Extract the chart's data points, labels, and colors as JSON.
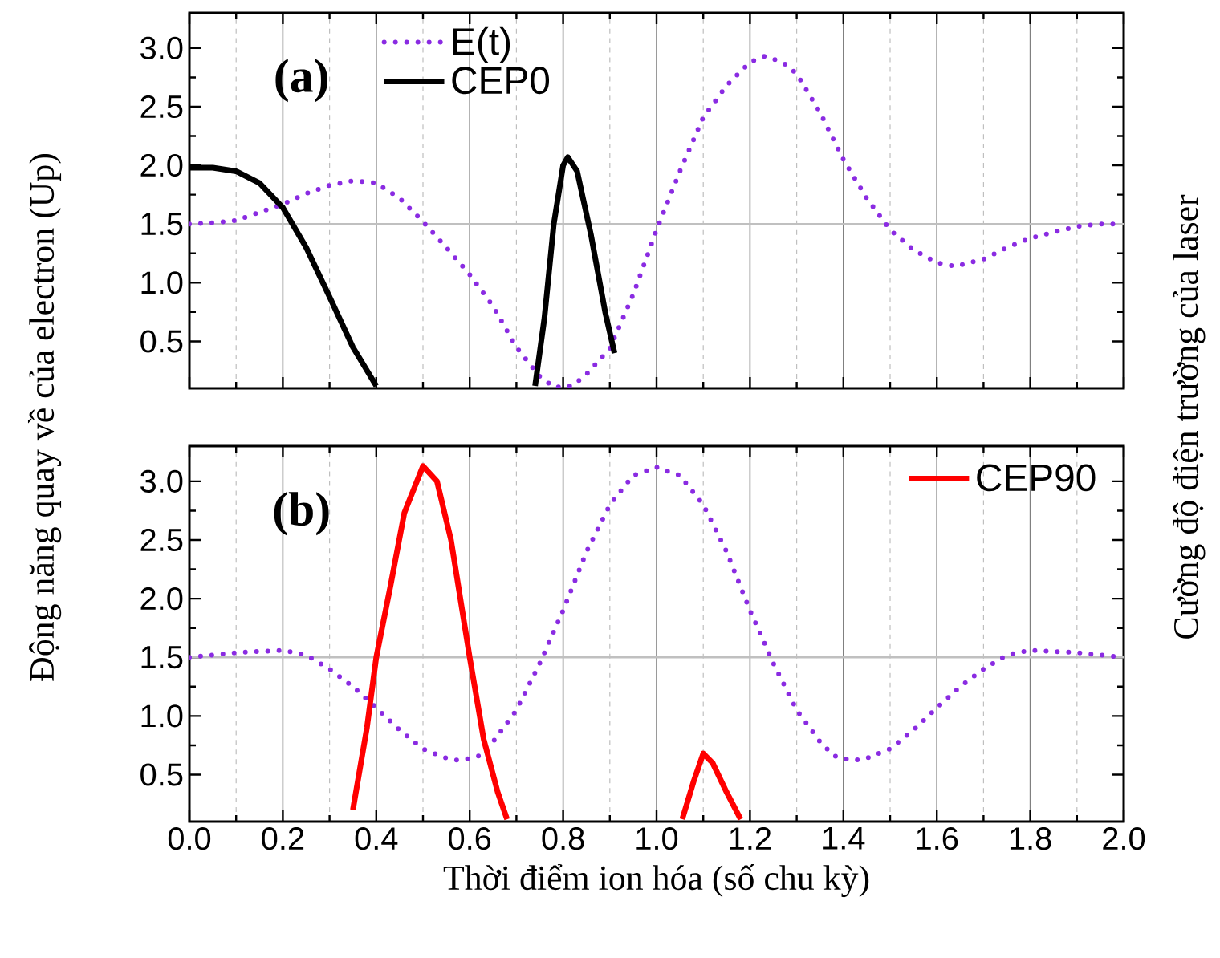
{
  "chart_data": [
    {
      "type": "line",
      "xlim": [
        0,
        2
      ],
      "ylim": [
        0.1,
        3.3
      ],
      "xticks": [
        {
          "value": 0,
          "label": null
        },
        {
          "value": 0.2,
          "label": null
        },
        {
          "value": 0.4,
          "label": null
        },
        {
          "value": 0.6,
          "label": null
        },
        {
          "value": 0.8,
          "label": null
        },
        {
          "value": 1,
          "label": null
        },
        {
          "value": 1.2,
          "label": null
        },
        {
          "value": 1.4,
          "label": null
        },
        {
          "value": 1.6,
          "label": null
        },
        {
          "value": 1.8,
          "label": null
        },
        {
          "value": 2,
          "label": null
        }
      ],
      "yticks": [
        0.5,
        {
          "value": 1,
          "label": "1.0"
        },
        1.5,
        {
          "value": 2,
          "label": "2.0"
        },
        2.5,
        {
          "value": 3,
          "label": "3.0"
        }
      ],
      "tick_labels": "y",
      "grid": "x",
      "legend": "top left",
      "ylabel": "Động năng quay về của electron (Up)",
      "y2label": "Cường độ điện trường của laser",
      "annotations": [
        "(a)"
      ],
      "ref_lines": [
        {
          "axis": "y",
          "value": 1.5,
          "color": "#c0c0c0"
        }
      ],
      "series": [
        {
          "name": "E(t)",
          "color": "#8a2be2",
          "line_style": "dotted",
          "x": [
            0,
            0.05,
            0.1,
            0.15,
            0.2,
            0.25,
            0.3,
            0.35,
            0.4,
            0.45,
            0.5,
            0.55,
            0.6,
            0.65,
            0.7,
            0.75,
            0.78,
            0.82,
            0.85,
            0.9,
            0.95,
            1.0,
            1.05,
            1.1,
            1.15,
            1.2,
            1.23,
            1.27,
            1.3,
            1.35,
            1.4,
            1.45,
            1.5,
            1.55,
            1.6,
            1.64,
            1.7,
            1.75,
            1.8,
            1.85,
            1.9,
            1.95,
            2.0
          ],
          "values": [
            1.5,
            1.51,
            1.53,
            1.6,
            1.67,
            1.76,
            1.83,
            1.87,
            1.85,
            1.72,
            1.52,
            1.3,
            1.07,
            0.8,
            0.45,
            0.2,
            0.11,
            0.12,
            0.22,
            0.44,
            0.9,
            1.45,
            1.95,
            2.41,
            2.68,
            2.88,
            2.93,
            2.88,
            2.78,
            2.45,
            2.05,
            1.72,
            1.45,
            1.28,
            1.17,
            1.14,
            1.2,
            1.3,
            1.38,
            1.43,
            1.48,
            1.5,
            1.5
          ]
        },
        {
          "name": "CEP0",
          "color": "#000000",
          "line_style": "solid",
          "x": [
            0,
            0.05,
            0.1,
            0.15,
            0.2,
            0.25,
            0.3,
            0.35,
            0.4
          ],
          "values": [
            1.98,
            1.98,
            1.95,
            1.85,
            1.64,
            1.3,
            0.88,
            0.45,
            0.12
          ]
        },
        {
          "color": "#000000",
          "line_style": "solid",
          "x": [
            0.74,
            0.76,
            0.78,
            0.8,
            0.81,
            0.83,
            0.86,
            0.89,
            0.91
          ],
          "values": [
            0.12,
            0.7,
            1.5,
            2.0,
            2.07,
            1.95,
            1.4,
            0.75,
            0.4
          ]
        }
      ]
    },
    {
      "type": "line",
      "xlim": [
        0,
        2
      ],
      "ylim": [
        0.1,
        3.3
      ],
      "xticks": [
        {
          "value": 0,
          "label": "0.0"
        },
        {
          "value": 0.2,
          "label": "0.2"
        },
        {
          "value": 0.4,
          "label": "0.4"
        },
        {
          "value": 0.6,
          "label": "0.6"
        },
        {
          "value": 0.8,
          "label": "0.8"
        },
        {
          "value": 1,
          "label": "1.0"
        },
        {
          "value": 1.2,
          "label": "1.2"
        },
        {
          "value": 1.4,
          "label": "1.4"
        },
        {
          "value": 1.6,
          "label": "1.6"
        },
        {
          "value": 1.8,
          "label": "1.8"
        },
        {
          "value": 2,
          "label": "2.0"
        }
      ],
      "yticks": [
        0.5,
        {
          "value": 1,
          "label": "1.0"
        },
        1.5,
        {
          "value": 2,
          "label": "2.0"
        },
        2.5,
        {
          "value": 3,
          "label": "3.0"
        }
      ],
      "grid": "x",
      "legend": "top right",
      "xlabel": "Thời điểm ion hóa (số chu kỳ)",
      "annotations": [
        "(b)"
      ],
      "ref_lines": [
        {
          "axis": "y",
          "value": 1.5,
          "color": "#c0c0c0"
        }
      ],
      "series": [
        {
          "color": "#8a2be2",
          "line_style": "dotted",
          "x": [
            0,
            0.1,
            0.2,
            0.25,
            0.3,
            0.35,
            0.4,
            0.45,
            0.5,
            0.55,
            0.58,
            0.62,
            0.65,
            0.7,
            0.75,
            0.8,
            0.85,
            0.9,
            0.95,
            1.0,
            1.05,
            1.1,
            1.15,
            1.2,
            1.25,
            1.3,
            1.35,
            1.38,
            1.42,
            1.45,
            1.5,
            1.55,
            1.6,
            1.65,
            1.7,
            1.75,
            1.8,
            1.9,
            2.0
          ],
          "values": [
            1.5,
            1.54,
            1.56,
            1.52,
            1.4,
            1.25,
            1.07,
            0.88,
            0.72,
            0.64,
            0.62,
            0.66,
            0.78,
            1.05,
            1.45,
            1.9,
            2.4,
            2.8,
            3.05,
            3.12,
            3.05,
            2.8,
            2.4,
            1.9,
            1.45,
            1.05,
            0.78,
            0.66,
            0.62,
            0.64,
            0.72,
            0.88,
            1.07,
            1.25,
            1.4,
            1.52,
            1.56,
            1.54,
            1.5
          ]
        },
        {
          "name": "CEP90",
          "color": "#ff0000",
          "line_style": "solid",
          "x": [
            0.35,
            0.38,
            0.4,
            0.43,
            0.46,
            0.5,
            0.53,
            0.56,
            0.6,
            0.63,
            0.66,
            0.68
          ],
          "values": [
            0.2,
            0.9,
            1.5,
            2.1,
            2.73,
            3.13,
            3.0,
            2.5,
            1.5,
            0.8,
            0.35,
            0.12
          ]
        },
        {
          "color": "#ff0000",
          "line_style": "solid",
          "x": [
            1.055,
            1.08,
            1.1,
            1.12,
            1.15,
            1.18
          ],
          "values": [
            0.12,
            0.45,
            0.68,
            0.6,
            0.35,
            0.12
          ]
        }
      ]
    }
  ]
}
